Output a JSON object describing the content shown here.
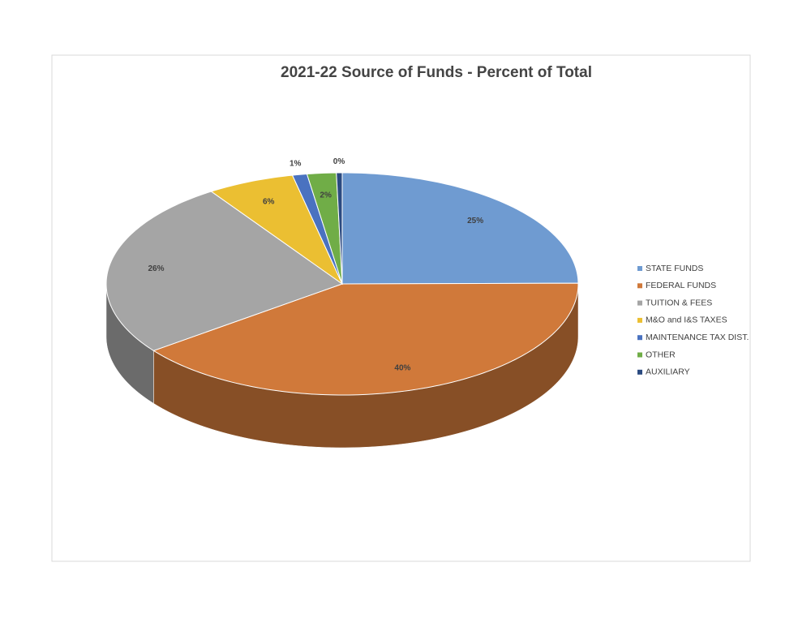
{
  "chart_data": {
    "type": "pie",
    "title": "2021-22 Source of Funds - Percent of Total",
    "categories": [
      "STATE FUNDS",
      "FEDERAL FUNDS",
      "TUITION & FEES",
      "M&O and I&S TAXES",
      "MAINTENANCE TAX DIST.",
      "OTHER",
      "AUXILIARY"
    ],
    "values": [
      25,
      40,
      26,
      6,
      1,
      2,
      0.4
    ],
    "value_labels": [
      "25%",
      "40%",
      "26%",
      "6%",
      "1%",
      "2%",
      "0%"
    ],
    "colors": [
      "#6f9bd1",
      "#d0793a",
      "#a5a5a5",
      "#ebbf32",
      "#4a72c0",
      "#70ad47",
      "#2b4a80"
    ],
    "legend": "right"
  }
}
